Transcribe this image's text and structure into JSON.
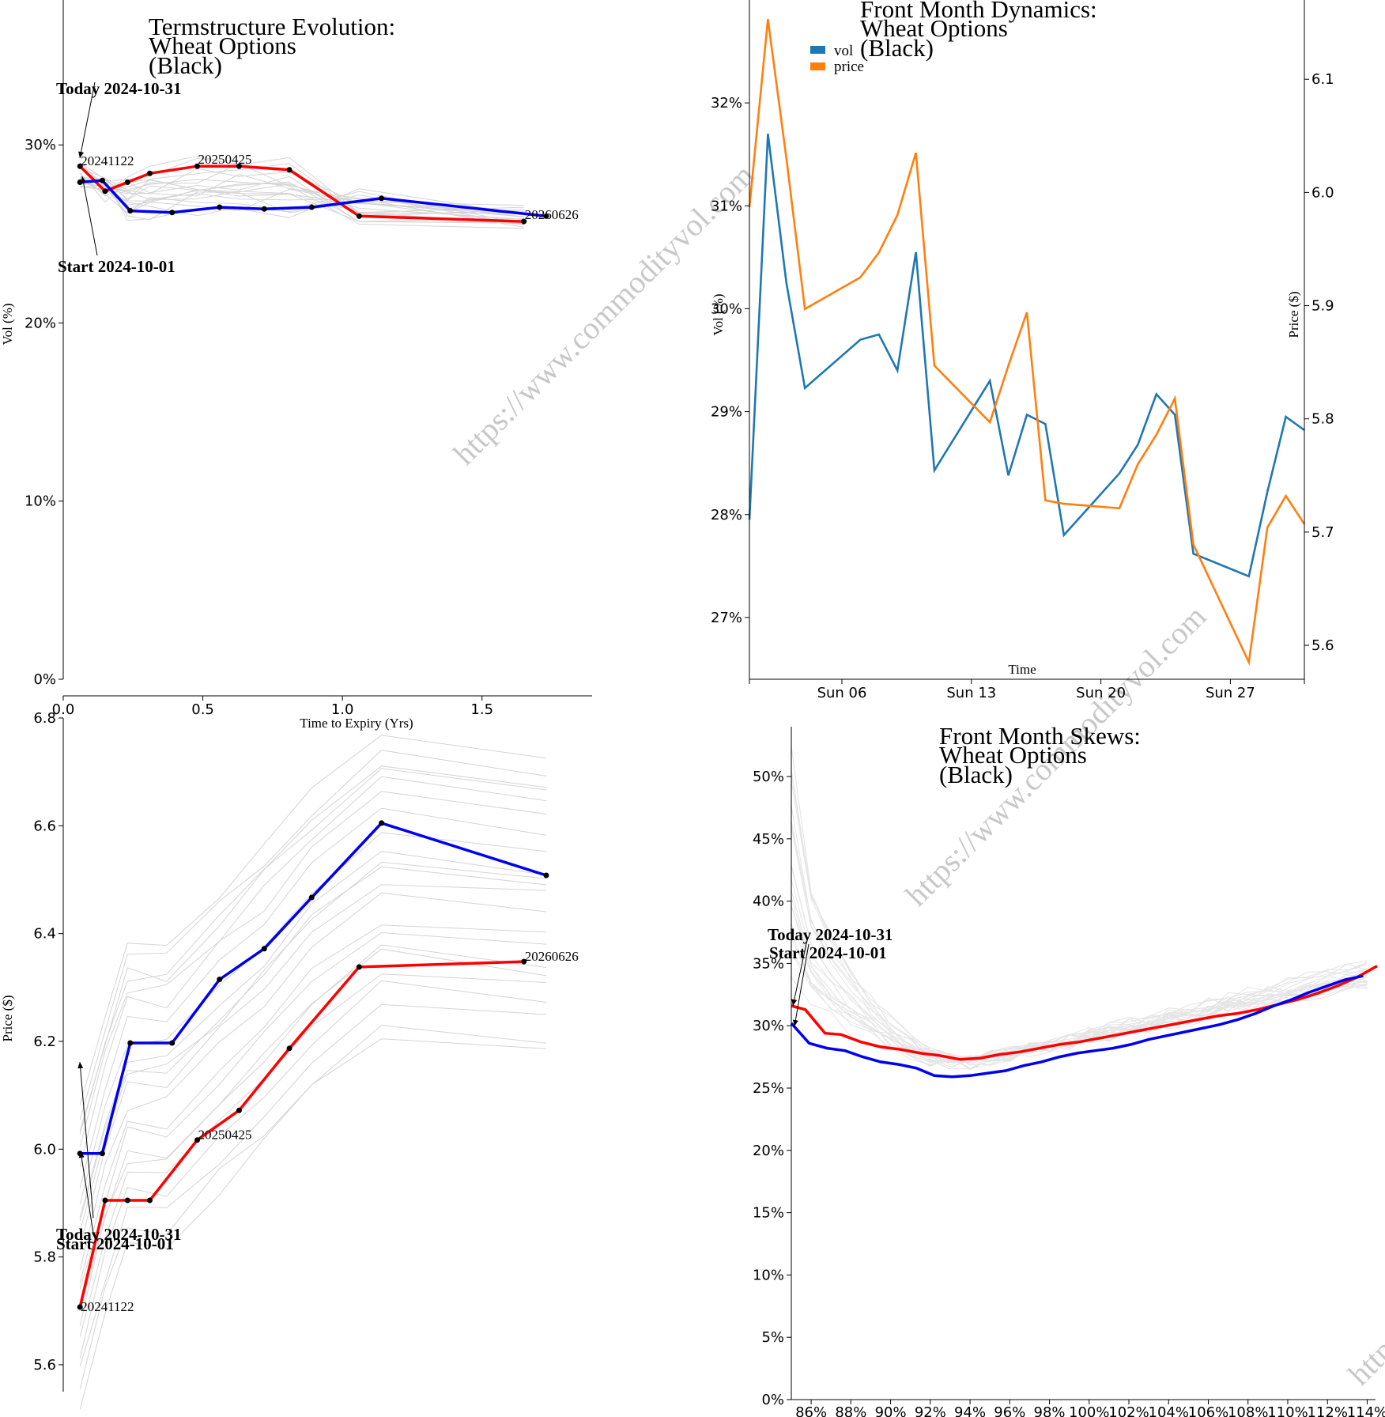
{
  "watermark": "https://www.commodityvol.com",
  "colors": {
    "today": "#ff0000",
    "start": "#0000ee",
    "history": "#d4d4d4",
    "vol": "#1f77b4",
    "price": "#ff7f0e"
  },
  "chart_data": [
    {
      "id": "termstructure_vol",
      "type": "line",
      "title": [
        "Termstructure Evolution:",
        "Wheat Options",
        "(Black)"
      ],
      "xlabel": "Time to Expiry (Yrs)",
      "ylabel": "Vol (%)",
      "xlim": [
        0,
        1.9
      ],
      "ylim": [
        0,
        38
      ],
      "xticks": [
        {
          "v": 0,
          "label": "0.0"
        },
        {
          "v": 0.5,
          "label": "0.5"
        },
        {
          "v": 1.0,
          "label": "1.0"
        },
        {
          "v": 1.5,
          "label": "1.5"
        }
      ],
      "yticks": [
        {
          "v": 0,
          "label": "0%"
        },
        {
          "v": 10,
          "label": "10%"
        },
        {
          "v": 20,
          "label": "20%"
        },
        {
          "v": 30,
          "label": "30%"
        }
      ],
      "annotations": [
        "Today 2024-10-31",
        "Start 2024-10-01"
      ],
      "point_labels": [
        {
          "text": "20241122",
          "x": 0.06,
          "y": 28.8
        },
        {
          "text": "20250425",
          "x": 0.48,
          "y": 28.9
        },
        {
          "text": "20260626",
          "x": 1.65,
          "y": 25.8
        }
      ],
      "series": [
        {
          "name": "Today 2024-10-31",
          "role": "today",
          "x": [
            0.06,
            0.15,
            0.23,
            0.31,
            0.48,
            0.63,
            0.81,
            1.06,
            1.65
          ],
          "y": [
            28.8,
            27.4,
            27.9,
            28.4,
            28.8,
            28.8,
            28.6,
            26.0,
            25.7
          ]
        },
        {
          "name": "Start 2024-10-01",
          "role": "start",
          "x": [
            0.06,
            0.14,
            0.24,
            0.39,
            0.56,
            0.72,
            0.89,
            1.14,
            1.73
          ],
          "y": [
            27.9,
            28.0,
            26.3,
            26.2,
            26.5,
            26.4,
            26.5,
            27.0,
            26.0
          ]
        }
      ]
    },
    {
      "id": "front_month_dynamics",
      "type": "line",
      "title": [
        "Front Month Dynamics:",
        "Wheat Options",
        "(Black)"
      ],
      "xlabel": "Time",
      "ylabel": "Vol (%)",
      "ylabel_right": "Price ($)",
      "x_dates": [
        "2024-10-01",
        "2024-10-02",
        "2024-10-03",
        "2024-10-04",
        "2024-10-07",
        "2024-10-08",
        "2024-10-09",
        "2024-10-10",
        "2024-10-11",
        "2024-10-14",
        "2024-10-15",
        "2024-10-16",
        "2024-10-17",
        "2024-10-18",
        "2024-10-21",
        "2024-10-22",
        "2024-10-23",
        "2024-10-24",
        "2024-10-25",
        "2024-10-28",
        "2024-10-29",
        "2024-10-30",
        "2024-10-31"
      ],
      "xlim": [
        "2024-10-01",
        "2024-10-31"
      ],
      "xticks": [
        {
          "v": "2024-10-06",
          "label": "Sun 06"
        },
        {
          "v": "2024-10-13",
          "label": "Sun 13"
        },
        {
          "v": "2024-10-20",
          "label": "Sun 20"
        },
        {
          "v": "2024-10-27",
          "label": "Sun 27"
        }
      ],
      "ylim": [
        26.4,
        33.0
      ],
      "ylim_right": [
        5.57,
        6.17
      ],
      "yticks": [
        {
          "v": 27,
          "label": "27%"
        },
        {
          "v": 28,
          "label": "28%"
        },
        {
          "v": 29,
          "label": "29%"
        },
        {
          "v": 30,
          "label": "30%"
        },
        {
          "v": 31,
          "label": "31%"
        },
        {
          "v": 32,
          "label": "32%"
        }
      ],
      "yticks_right": [
        {
          "v": 5.6,
          "label": "5.6"
        },
        {
          "v": 5.7,
          "label": "5.7"
        },
        {
          "v": 5.8,
          "label": "5.8"
        },
        {
          "v": 5.9,
          "label": "5.9"
        },
        {
          "v": 6.0,
          "label": "6.0"
        },
        {
          "v": 6.1,
          "label": "6.1"
        }
      ],
      "legend": [
        "vol",
        "price"
      ],
      "series": [
        {
          "name": "vol",
          "axis": "left",
          "y": [
            27.95,
            31.7,
            30.25,
            29.23,
            29.7,
            29.75,
            29.4,
            30.55,
            28.43,
            29.3,
            28.38,
            28.97,
            28.88,
            27.8,
            28.4,
            28.68,
            29.17,
            28.97,
            27.62,
            27.4,
            28.22,
            28.95,
            28.82
          ]
        },
        {
          "name": "price",
          "axis": "right",
          "y": [
            5.987,
            6.153,
            6.03,
            5.897,
            5.925,
            5.947,
            5.98,
            6.035,
            5.847,
            5.797,
            5.847,
            5.894,
            5.728,
            5.725,
            5.721,
            5.76,
            5.786,
            5.818,
            5.689,
            5.585,
            5.704,
            5.732,
            5.707
          ]
        }
      ]
    },
    {
      "id": "termstructure_price",
      "type": "line",
      "ylabel": "Price ($)",
      "ylim": [
        5.55,
        6.8
      ],
      "yticks": [
        {
          "v": 5.6,
          "label": "5.6"
        },
        {
          "v": 5.8,
          "label": "5.8"
        },
        {
          "v": 6.0,
          "label": "6.0"
        },
        {
          "v": 6.2,
          "label": "6.2"
        },
        {
          "v": 6.4,
          "label": "6.4"
        },
        {
          "v": 6.6,
          "label": "6.6"
        },
        {
          "v": 6.8,
          "label": "6.8"
        }
      ],
      "annotations": [
        "Today 2024-10-31",
        "Start 2024-10-01"
      ],
      "point_labels": [
        {
          "text": "20241122",
          "x": 0.06,
          "y": 5.707
        },
        {
          "text": "20250425",
          "x": 0.48,
          "y": 6.017
        },
        {
          "text": "20260626",
          "x": 1.65,
          "y": 6.348
        }
      ],
      "series": [
        {
          "name": "Today 2024-10-31",
          "role": "today",
          "x": [
            0.06,
            0.15,
            0.23,
            0.31,
            0.48,
            0.63,
            0.81,
            1.06,
            1.65
          ],
          "y": [
            5.707,
            5.905,
            5.905,
            5.905,
            6.017,
            6.072,
            6.187,
            6.338,
            6.348
          ]
        },
        {
          "name": "Start 2024-10-01",
          "role": "start",
          "x": [
            0.06,
            0.14,
            0.24,
            0.39,
            0.56,
            0.72,
            0.89,
            1.14,
            1.73
          ],
          "y": [
            5.992,
            5.992,
            6.197,
            6.197,
            6.315,
            6.372,
            6.467,
            6.605,
            6.508
          ]
        }
      ]
    },
    {
      "id": "front_month_skews",
      "type": "line",
      "title": [
        "Front Month Skews:",
        "Wheat Options",
        "(Black)"
      ],
      "xlim": [
        85,
        114.5
      ],
      "ylim": [
        0,
        54
      ],
      "xticks": [
        {
          "v": 86,
          "label": "86%"
        },
        {
          "v": 88,
          "label": "88%"
        },
        {
          "v": 90,
          "label": "90%"
        },
        {
          "v": 92,
          "label": "92%"
        },
        {
          "v": 94,
          "label": "94%"
        },
        {
          "v": 96,
          "label": "96%"
        },
        {
          "v": 98,
          "label": "98%"
        },
        {
          "v": 100,
          "label": "100%"
        },
        {
          "v": 102,
          "label": "102%"
        },
        {
          "v": 104,
          "label": "104%"
        },
        {
          "v": 106,
          "label": "106%"
        },
        {
          "v": 108,
          "label": "108%"
        },
        {
          "v": 110,
          "label": "110%"
        },
        {
          "v": 112,
          "label": "112%"
        },
        {
          "v": 114,
          "label": "114%"
        }
      ],
      "yticks": [
        {
          "v": 0,
          "label": "0%"
        },
        {
          "v": 5,
          "label": "5%"
        },
        {
          "v": 10,
          "label": "10%"
        },
        {
          "v": 15,
          "label": "15%"
        },
        {
          "v": 20,
          "label": "20%"
        },
        {
          "v": 25,
          "label": "25%"
        },
        {
          "v": 30,
          "label": "30%"
        },
        {
          "v": 35,
          "label": "35%"
        },
        {
          "v": 40,
          "label": "40%"
        },
        {
          "v": 45,
          "label": "45%"
        },
        {
          "v": 50,
          "label": "50%"
        }
      ],
      "annotations": [
        "Today 2024-10-31",
        "Start 2024-10-01"
      ],
      "series": [
        {
          "name": "Today 2024-10-31",
          "role": "today",
          "x": [
            85,
            85.7,
            86.7,
            87.5,
            88.5,
            89.5,
            90.5,
            91.5,
            92.5,
            93.5,
            94.5,
            95.5,
            96.5,
            97.5,
            98.5,
            99.5,
            100.5,
            101.5,
            102.5,
            103.5,
            104.5,
            105.5,
            106.5,
            107.5,
            108.5,
            109.5,
            110.5,
            111.5,
            112.5,
            113.5,
            114.5
          ],
          "y": [
            31.6,
            31.3,
            29.4,
            29.3,
            28.7,
            28.3,
            28.1,
            27.8,
            27.6,
            27.3,
            27.4,
            27.7,
            27.9,
            28.2,
            28.5,
            28.7,
            29.0,
            29.3,
            29.6,
            29.9,
            30.2,
            30.5,
            30.8,
            31.0,
            31.3,
            31.7,
            32.1,
            32.6,
            33.2,
            33.9,
            34.8
          ]
        },
        {
          "name": "Start 2024-10-01",
          "role": "start",
          "x": [
            85,
            85.9,
            86.8,
            87.7,
            88.6,
            89.5,
            90.4,
            91.3,
            92.2,
            93.1,
            94.0,
            94.9,
            95.8,
            96.7,
            97.6,
            98.5,
            99.4,
            100.3,
            101.2,
            102.1,
            103.0,
            103.9,
            104.8,
            105.7,
            106.6,
            107.5,
            108.4,
            109.3,
            110.2,
            111.1,
            112.0,
            112.9,
            113.8
          ],
          "y": [
            30.2,
            28.6,
            28.2,
            28.0,
            27.5,
            27.1,
            26.9,
            26.6,
            26.0,
            25.9,
            26.0,
            26.2,
            26.4,
            26.8,
            27.1,
            27.5,
            27.8,
            28.0,
            28.2,
            28.5,
            28.9,
            29.2,
            29.5,
            29.8,
            30.1,
            30.5,
            31.0,
            31.6,
            32.1,
            32.7,
            33.2,
            33.7,
            34.0
          ]
        }
      ]
    }
  ]
}
